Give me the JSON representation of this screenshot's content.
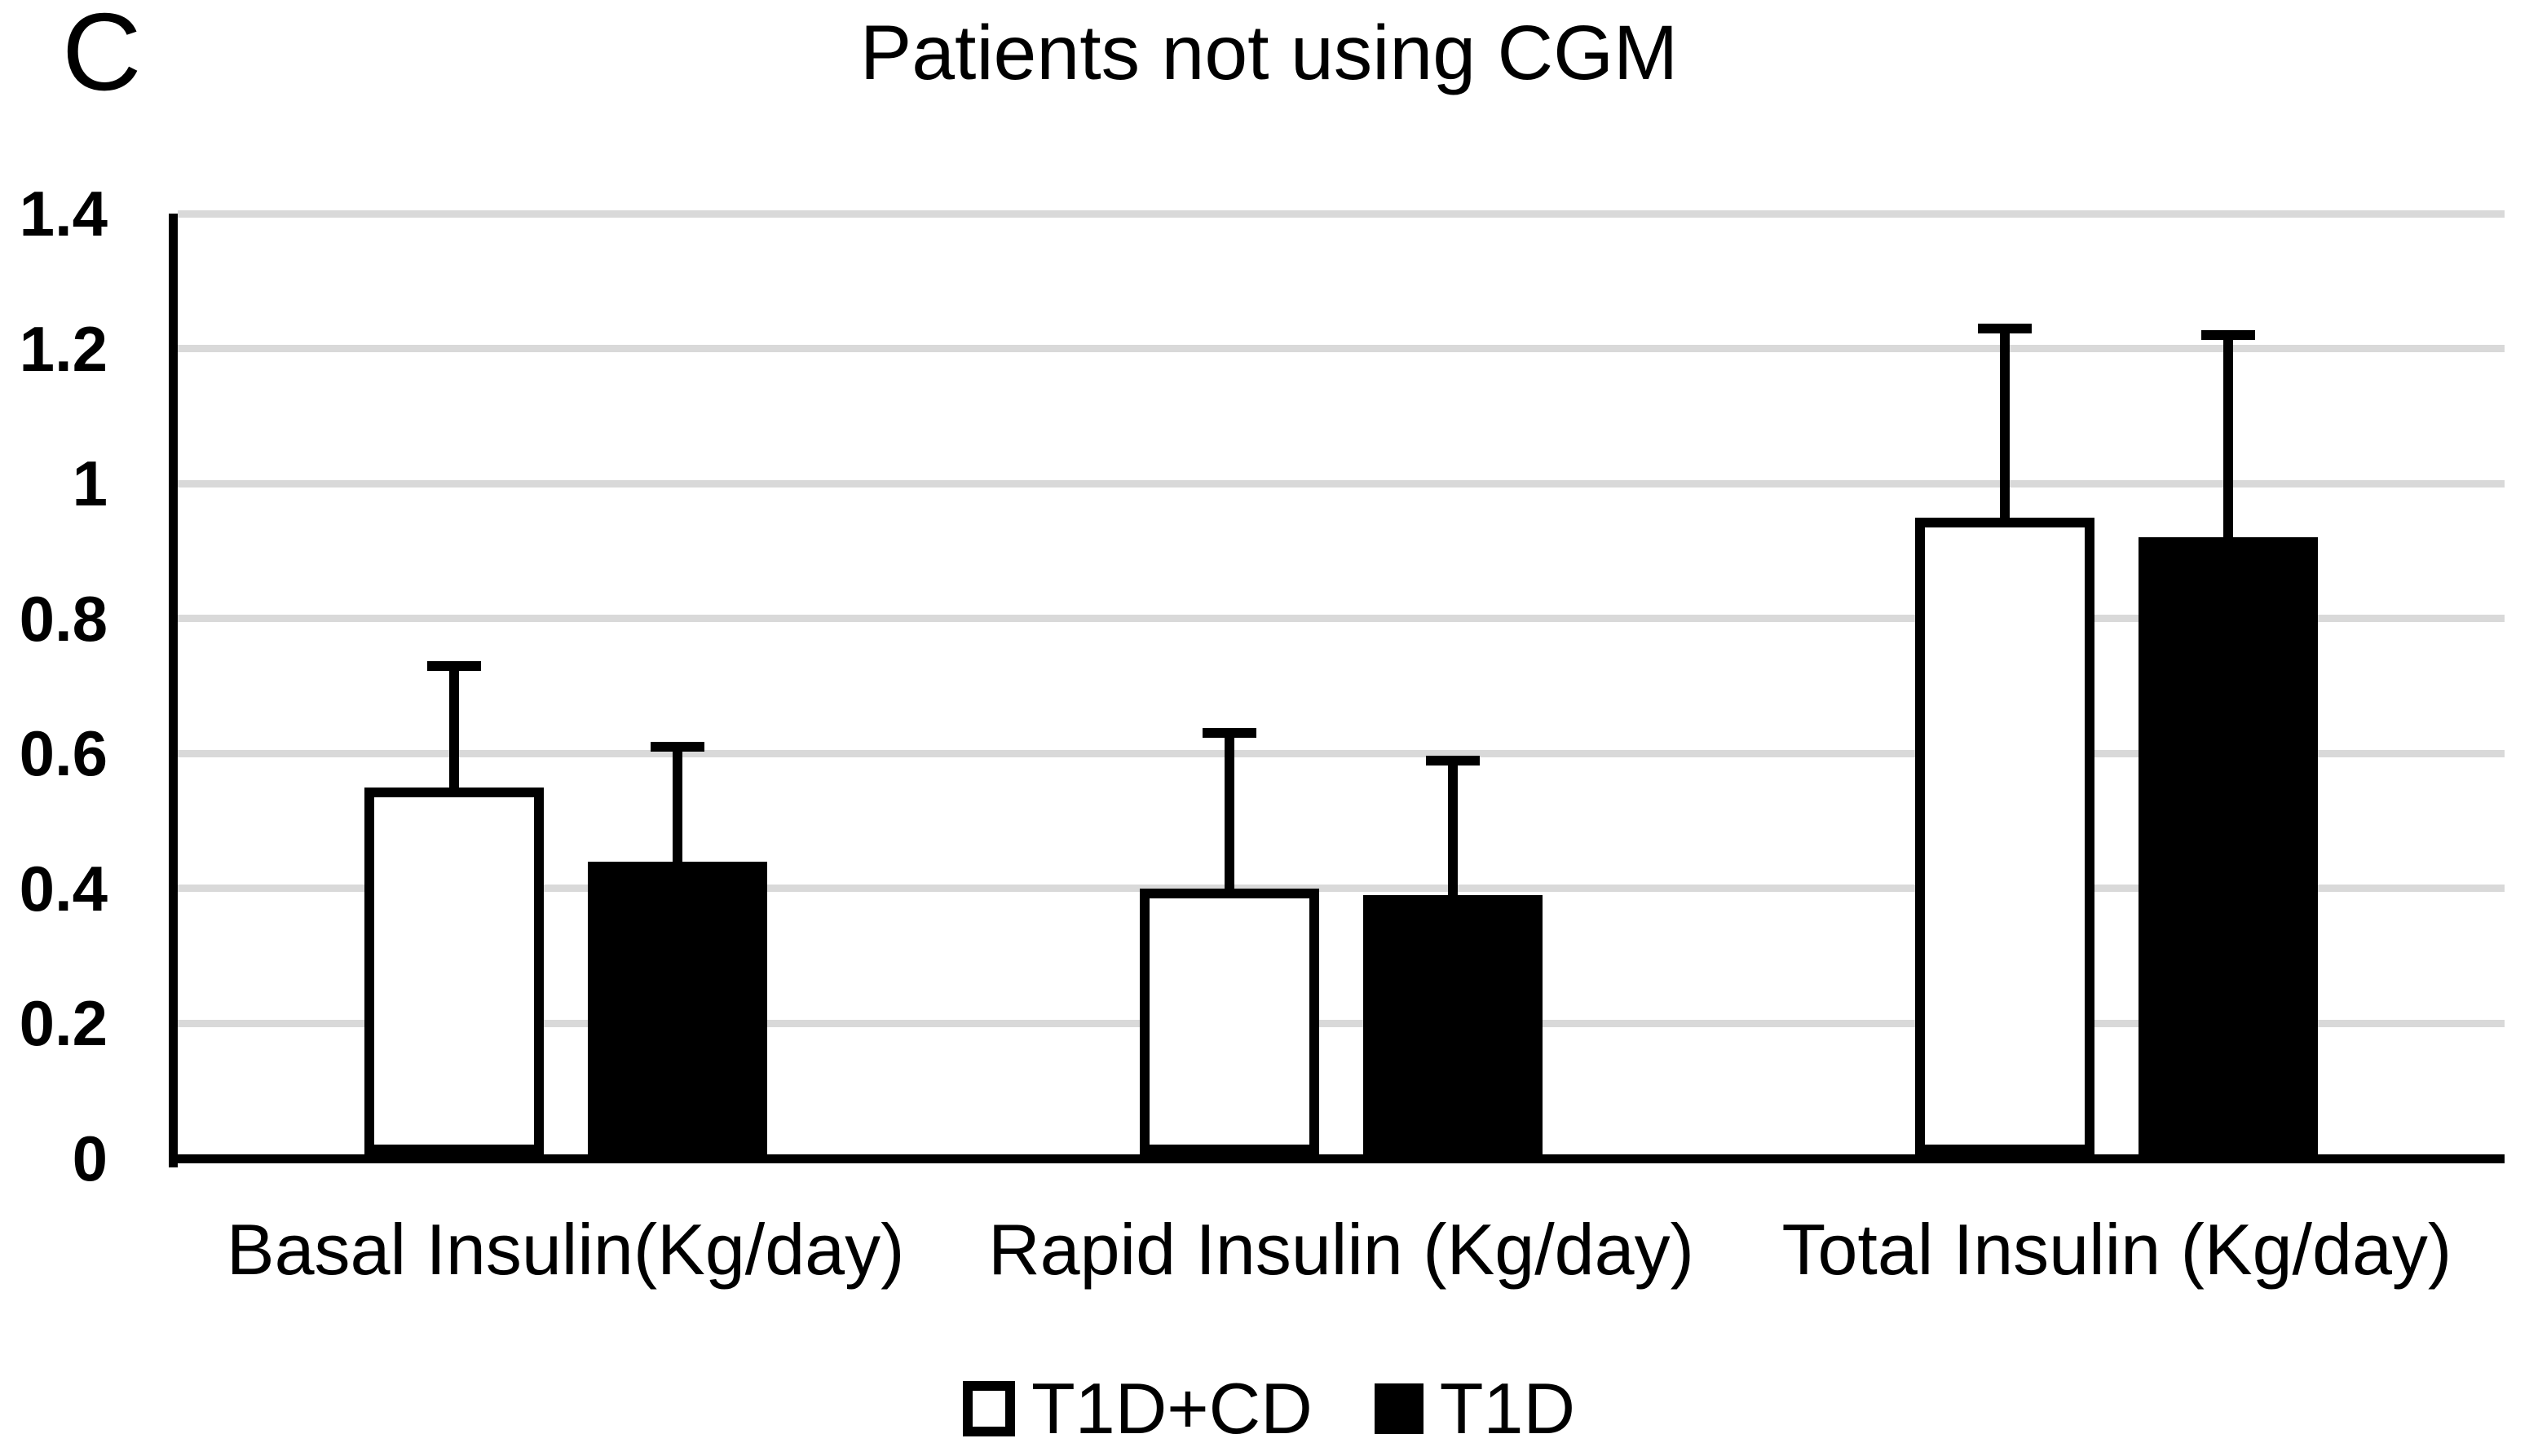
{
  "panel_label": "C",
  "colors": {
    "black": "#000000",
    "white": "#ffffff",
    "gridline": "#d9d9d9"
  },
  "chart_data": {
    "type": "bar",
    "title": "Patients not using CGM",
    "categories": [
      "Basal Insulin(Kg/day)",
      "Rapid Insulin (Kg/day)",
      "Total Insulin (Kg/day)"
    ],
    "series": [
      {
        "name": "T1D+CD",
        "values": [
          0.55,
          0.4,
          0.95
        ],
        "error_upper": [
          0.73,
          0.63,
          1.23
        ],
        "fill": "#ffffff",
        "border": "#000000",
        "swatch": "white-outlined-square"
      },
      {
        "name": "T1D",
        "values": [
          0.44,
          0.39,
          0.92
        ],
        "error_upper": [
          0.61,
          0.59,
          1.22
        ],
        "fill": "#000000",
        "border": "#000000",
        "swatch": "black-filled-square"
      }
    ],
    "xlabel": "",
    "ylabel": "",
    "ylim": [
      0,
      1.4
    ],
    "ytick_interval": 0.2,
    "ytick_labels": [
      "0",
      "0.2",
      "0.4",
      "0.6",
      "0.8",
      "1",
      "1.2",
      "1.4"
    ],
    "grid": true,
    "error_bars": "upper-only",
    "legend_position": "bottom"
  },
  "legend": {
    "items": [
      {
        "label": "T1D+CD",
        "swatch": "white-outlined-square"
      },
      {
        "label": "T1D",
        "swatch": "black-filled-square"
      }
    ]
  }
}
